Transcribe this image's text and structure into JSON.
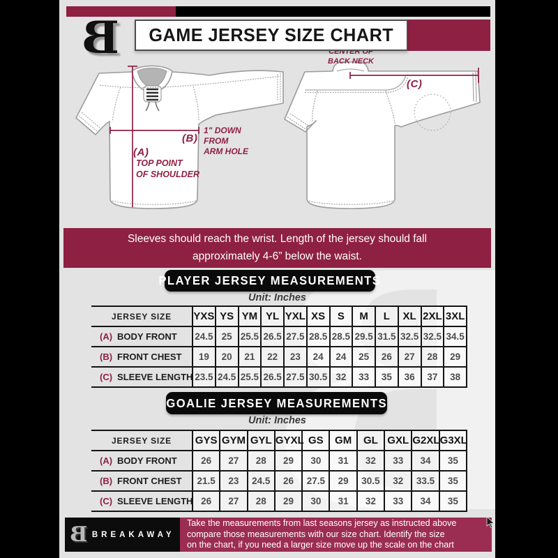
{
  "colors": {
    "maroon": "#8e2043",
    "footer_maroon": "#9c2d52",
    "page_bg": "#e3e3e4"
  },
  "header": {
    "title": "GAME JERSEY SIZE CHART",
    "logo_letter": "B"
  },
  "diagram": {
    "front": {
      "label_a": "(A)",
      "label_b": "(B)",
      "note_a": "TOP POINT\nOF SHOULDER",
      "note_b": "1\" DOWN\nFROM\nARM HOLE"
    },
    "back": {
      "label_c": "(C)",
      "note_c": "CENTER OF\nBACK NECK"
    }
  },
  "note_banner": "Sleeves should reach the wrist. Length of the jersey should fall\napproximately 4-6” below the waist.",
  "player_table": {
    "heading": "PLAYER JERSEY MEASUREMENTS",
    "unit": "Unit: Inches",
    "size_label": "JERSEY SIZE",
    "sizes": [
      "YXS",
      "YS",
      "YM",
      "YL",
      "YXL",
      "XS",
      "S",
      "M",
      "L",
      "XL",
      "2XL",
      "3XL"
    ],
    "rows": [
      {
        "key": "(A)",
        "label": "BODY FRONT",
        "values": [
          "24.5",
          "25",
          "25.5",
          "26.5",
          "27.5",
          "28.5",
          "28.5",
          "29.5",
          "31.5",
          "32.5",
          "32.5",
          "34.5"
        ]
      },
      {
        "key": "(B)",
        "label": "FRONT CHEST",
        "values": [
          "19",
          "20",
          "21",
          "22",
          "23",
          "24",
          "24",
          "25",
          "26",
          "27",
          "28",
          "29"
        ]
      },
      {
        "key": "(C)",
        "label": "SLEEVE LENGTH",
        "values": [
          "23.5",
          "24.5",
          "25.5",
          "26.5",
          "27.5",
          "30.5",
          "32",
          "33",
          "35",
          "36",
          "37",
          "38"
        ]
      }
    ]
  },
  "goalie_table": {
    "heading": "GOALIE JERSEY MEASUREMENTS",
    "unit": "Unit: Inches",
    "size_label": "JERSEY SIZE",
    "sizes": [
      "GYS",
      "GYM",
      "GYL",
      "GYXL",
      "GS",
      "GM",
      "GL",
      "GXL",
      "G2XL",
      "G3XL"
    ],
    "rows": [
      {
        "key": "(A)",
        "label": "BODY FRONT",
        "values": [
          "26",
          "27",
          "28",
          "29",
          "30",
          "31",
          "32",
          "33",
          "34",
          "35"
        ]
      },
      {
        "key": "(B)",
        "label": "FRONT CHEST",
        "values": [
          "21.5",
          "23",
          "24.5",
          "26",
          "27.5",
          "29",
          "30.5",
          "32",
          "33.5",
          "35"
        ]
      },
      {
        "key": "(C)",
        "label": "SLEEVE LENGTH",
        "values": [
          "26",
          "27",
          "28",
          "29",
          "30",
          "31",
          "32",
          "33",
          "34",
          "35"
        ]
      }
    ]
  },
  "footer": {
    "brand": "BREAKAWAY",
    "logo_letter": "B",
    "text": "Take the measurements from last seasons jersey as instructed above\ncompare those measurements  with our size chart. Identify the size\non the chart, if you need a larger size move up the scale on the chart"
  },
  "watermark_letter": "B"
}
